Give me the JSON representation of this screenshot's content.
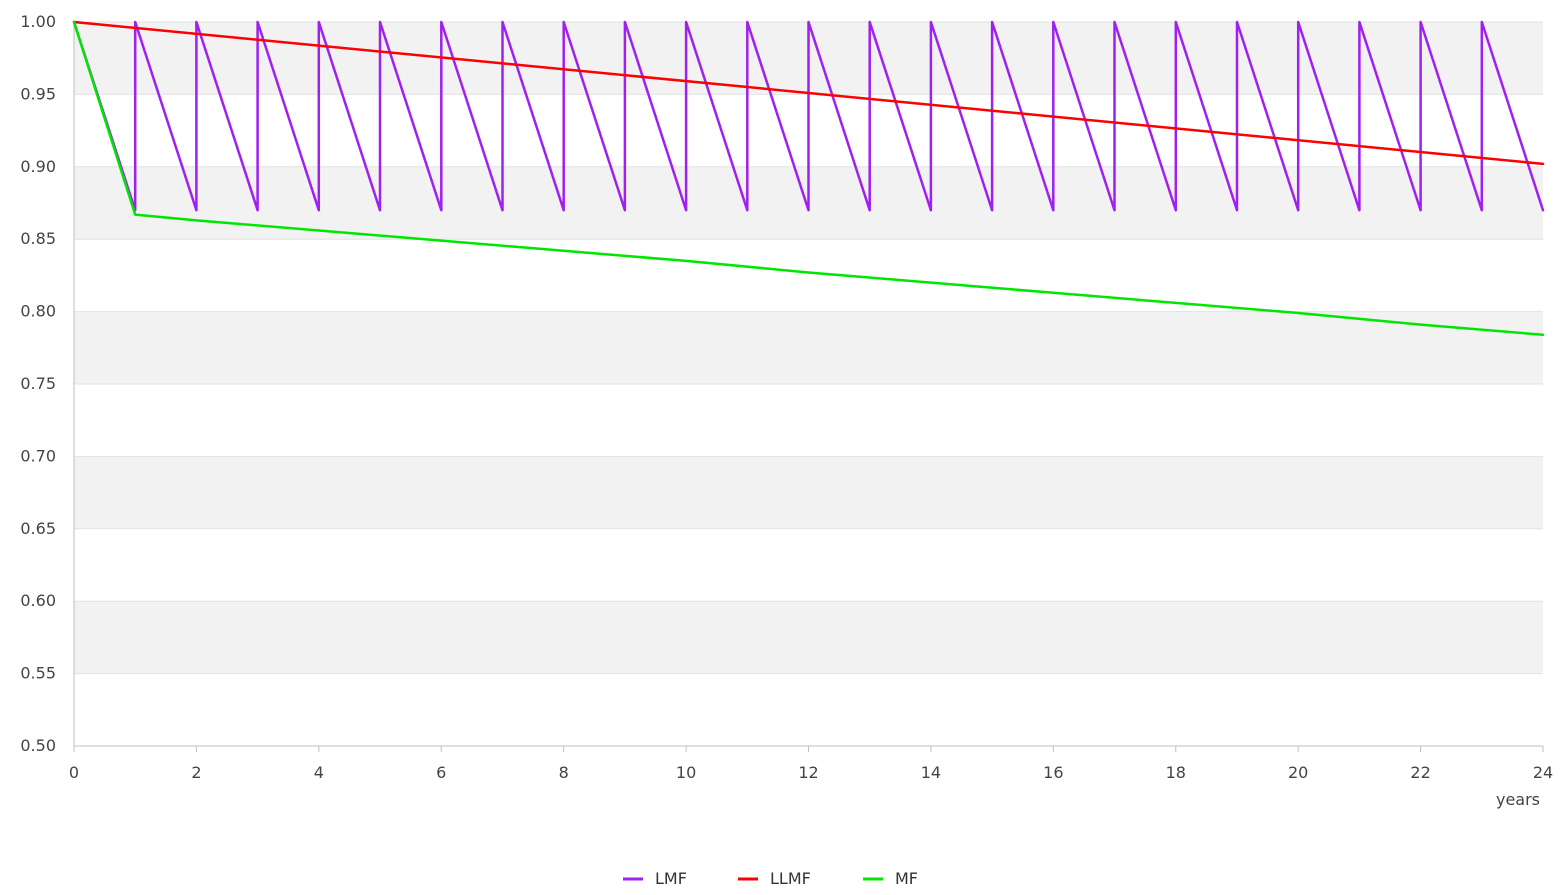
{
  "chart_data": {
    "type": "line",
    "title": "",
    "xlabel": "years",
    "ylabel": "",
    "xlim": [
      0,
      24
    ],
    "ylim": [
      0.5,
      1.0
    ],
    "x_ticks": [
      0,
      2,
      4,
      6,
      8,
      10,
      12,
      14,
      16,
      18,
      20,
      22,
      24
    ],
    "y_ticks": [
      0.5,
      0.55,
      0.6,
      0.65,
      0.7,
      0.75,
      0.8,
      0.85,
      0.9,
      0.95,
      1.0
    ],
    "grid": "horizontal, alternating bands",
    "legend_position": "bottom-center",
    "series": [
      {
        "name": "LMF",
        "color": "#a020f0",
        "points": [
          [
            0,
            1.0
          ],
          [
            1,
            0.87
          ],
          [
            1,
            1.0
          ],
          [
            2,
            0.87
          ],
          [
            2,
            1.0
          ],
          [
            3,
            0.87
          ],
          [
            3,
            1.0
          ],
          [
            4,
            0.87
          ],
          [
            4,
            1.0
          ],
          [
            5,
            0.87
          ],
          [
            5,
            1.0
          ],
          [
            6,
            0.87
          ],
          [
            6,
            1.0
          ],
          [
            7,
            0.87
          ],
          [
            7,
            1.0
          ],
          [
            8,
            0.87
          ],
          [
            8,
            1.0
          ],
          [
            9,
            0.87
          ],
          [
            9,
            1.0
          ],
          [
            10,
            0.87
          ],
          [
            10,
            1.0
          ],
          [
            11,
            0.87
          ],
          [
            11,
            1.0
          ],
          [
            12,
            0.87
          ],
          [
            12,
            1.0
          ],
          [
            13,
            0.87
          ],
          [
            13,
            1.0
          ],
          [
            14,
            0.87
          ],
          [
            14,
            1.0
          ],
          [
            15,
            0.87
          ],
          [
            15,
            1.0
          ],
          [
            16,
            0.87
          ],
          [
            16,
            1.0
          ],
          [
            17,
            0.87
          ],
          [
            17,
            1.0
          ],
          [
            18,
            0.87
          ],
          [
            18,
            1.0
          ],
          [
            19,
            0.87
          ],
          [
            19,
            1.0
          ],
          [
            20,
            0.87
          ],
          [
            20,
            1.0
          ],
          [
            21,
            0.87
          ],
          [
            21,
            1.0
          ],
          [
            22,
            0.87
          ],
          [
            22,
            1.0
          ],
          [
            23,
            0.87
          ],
          [
            23,
            1.0
          ],
          [
            24,
            0.87
          ]
        ]
      },
      {
        "name": "LLMF",
        "color": "#ff0000",
        "points": [
          [
            0,
            1.0
          ],
          [
            24,
            0.902
          ]
        ]
      },
      {
        "name": "MF",
        "color": "#00e600",
        "points": [
          [
            0,
            1.0
          ],
          [
            1,
            0.867
          ],
          [
            2,
            0.863
          ],
          [
            4,
            0.856
          ],
          [
            6,
            0.849
          ],
          [
            8,
            0.842
          ],
          [
            10,
            0.835
          ],
          [
            12,
            0.827
          ],
          [
            14,
            0.82
          ],
          [
            16,
            0.813
          ],
          [
            18,
            0.806
          ],
          [
            20,
            0.799
          ],
          [
            22,
            0.791
          ],
          [
            24,
            0.784
          ]
        ]
      }
    ]
  }
}
